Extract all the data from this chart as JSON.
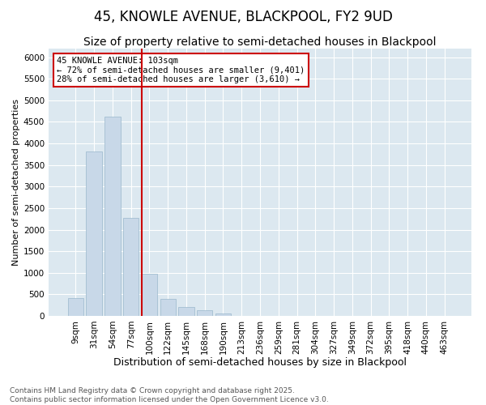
{
  "title1": "45, KNOWLE AVENUE, BLACKPOOL, FY2 9UD",
  "title2": "Size of property relative to semi-detached houses in Blackpool",
  "xlabel": "Distribution of semi-detached houses by size in Blackpool",
  "ylabel": "Number of semi-detached properties",
  "categories": [
    "9sqm",
    "31sqm",
    "54sqm",
    "77sqm",
    "100sqm",
    "122sqm",
    "145sqm",
    "168sqm",
    "190sqm",
    "213sqm",
    "236sqm",
    "259sqm",
    "281sqm",
    "304sqm",
    "327sqm",
    "349sqm",
    "372sqm",
    "395sqm",
    "418sqm",
    "440sqm",
    "463sqm"
  ],
  "values": [
    420,
    3820,
    4620,
    2280,
    980,
    400,
    200,
    130,
    60,
    0,
    0,
    0,
    0,
    0,
    0,
    0,
    0,
    0,
    0,
    0,
    0
  ],
  "bar_color": "#c8d8e8",
  "bar_edge_color": "#9ab8cc",
  "vline_color": "#cc0000",
  "annotation_text": "45 KNOWLE AVENUE: 103sqm\n← 72% of semi-detached houses are smaller (9,401)\n28% of semi-detached houses are larger (3,610) →",
  "annotation_box_color": "#ffffff",
  "annotation_edge_color": "#cc0000",
  "ylim": [
    0,
    6200
  ],
  "yticks": [
    0,
    500,
    1000,
    1500,
    2000,
    2500,
    3000,
    3500,
    4000,
    4500,
    5000,
    5500,
    6000
  ],
  "background_color": "#dce8f0",
  "grid_color": "#ffffff",
  "footer_text": "Contains HM Land Registry data © Crown copyright and database right 2025.\nContains public sector information licensed under the Open Government Licence v3.0.",
  "title1_fontsize": 12,
  "title2_fontsize": 10,
  "xlabel_fontsize": 9,
  "ylabel_fontsize": 8,
  "tick_fontsize": 7.5,
  "annotation_fontsize": 7.5,
  "footer_fontsize": 6.5
}
